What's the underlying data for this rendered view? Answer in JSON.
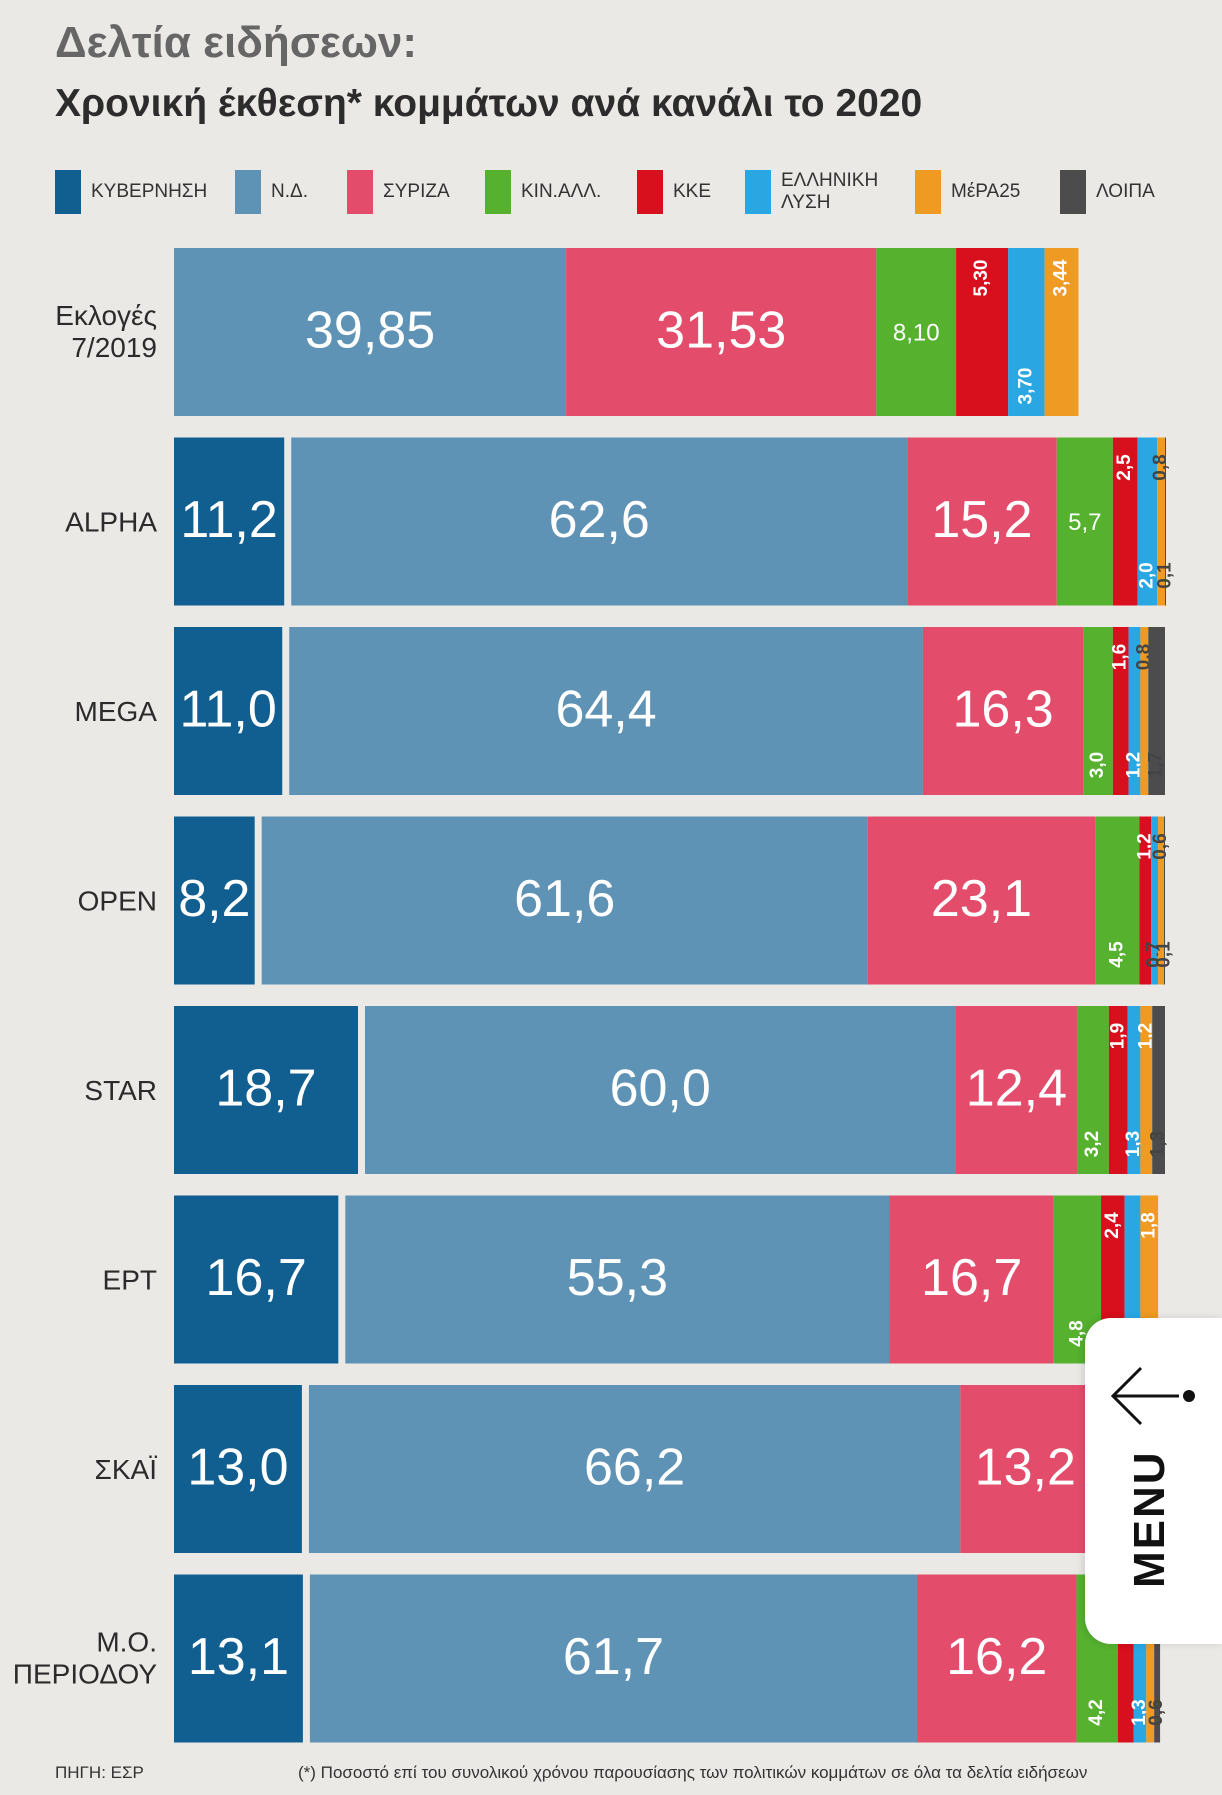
{
  "header": {
    "title": "Δελτία ειδήσεων:",
    "subtitle": "Χρονική έκθεση* κομμάτων ανά κανάλι το 2020"
  },
  "legend": [
    {
      "label": "ΚΥΒΕΡΝΗΣΗ",
      "color": "#115f91"
    },
    {
      "label": "Ν.Δ.",
      "color": "#5f93b5"
    },
    {
      "label": "ΣΥΡΙΖΑ",
      "color": "#e34d6b"
    },
    {
      "label": "ΚΙΝ.ΑΛΛ.",
      "color": "#56b12f"
    },
    {
      "label": "ΚΚΕ",
      "color": "#d80f1c"
    },
    {
      "label": "ΕΛΛΗΝΙΚΗ ΛΥΣΗ",
      "color": "#2aa7e3"
    },
    {
      "label": "ΜέΡΑ25",
      "color": "#ee9a23"
    },
    {
      "label": "ΛΟΙΠΑ",
      "color": "#4c4c4c"
    }
  ],
  "chart_data": {
    "type": "bar",
    "orientation": "horizontal",
    "stacked": true,
    "unit": "%",
    "categories": [
      "Εκλογές 7/2019",
      "ALPHA",
      "MEGA",
      "OPEN",
      "STAR",
      "ΕΡΤ",
      "ΣΚΑΪ",
      "Μ.Ο. ΠΕΡΙΟΔΟΥ"
    ],
    "series": [
      {
        "name": "ΚΥΒΕΡΝΗΣΗ",
        "values": [
          null,
          11.2,
          11.0,
          8.2,
          18.7,
          16.7,
          13.0,
          13.1
        ],
        "labels": [
          "",
          "11,2",
          "11,0",
          "8,2",
          "18,7",
          "16,7",
          "13,0",
          "13,1"
        ]
      },
      {
        "name": "Ν.Δ.",
        "values": [
          39.85,
          62.6,
          64.4,
          61.6,
          60.0,
          55.3,
          66.2,
          61.7
        ],
        "labels": [
          "39,85",
          "62,6",
          "64,4",
          "61,6",
          "60,0",
          "55,3",
          "66,2",
          "61,7"
        ]
      },
      {
        "name": "ΣΥΡΙΖΑ",
        "values": [
          31.53,
          15.2,
          16.3,
          23.1,
          12.4,
          16.7,
          13.2,
          16.2
        ],
        "labels": [
          "31,53",
          "15,2",
          "16,3",
          "23,1",
          "12,4",
          "16,7",
          "13,2",
          "16,2"
        ]
      },
      {
        "name": "ΚΙΝ.ΑΛΛ.",
        "values": [
          8.1,
          5.7,
          3.0,
          4.5,
          3.2,
          4.8,
          2.4,
          4.2
        ],
        "labels": [
          "8,10",
          "5,7",
          "3,0",
          "4,5",
          "3,2",
          "4,8",
          "",
          "4,2"
        ]
      },
      {
        "name": "ΚΚΕ",
        "values": [
          5.3,
          2.5,
          1.6,
          1.2,
          1.9,
          2.4,
          1.5,
          1.6
        ],
        "labels": [
          "5,30",
          "2,5",
          "1,6",
          "1,2",
          "1,9",
          "2,4",
          "",
          ""
        ]
      },
      {
        "name": "ΕΛΛΗΝΙΚΗ ΛΥΣΗ",
        "values": [
          3.7,
          2.0,
          1.2,
          0.7,
          1.3,
          1.6,
          1.2,
          1.3
        ],
        "labels": [
          "3,70",
          "2,0",
          "1,2",
          "0,7",
          "1,3",
          "",
          "",
          "1,3"
        ]
      },
      {
        "name": "ΜέΡΑ25",
        "values": [
          3.44,
          0.8,
          0.8,
          0.6,
          1.2,
          1.8,
          0.8,
          0.8
        ],
        "labels": [
          "3,44",
          "0,8",
          "0,8",
          "0,6",
          "1,2",
          "1,8",
          "",
          ""
        ]
      },
      {
        "name": "ΛΟΙΠΑ",
        "values": [
          null,
          0.1,
          1.7,
          0.1,
          1.3,
          null,
          null,
          0.6
        ],
        "labels": [
          "",
          "0,1",
          "1,7",
          "0,1",
          "1,3",
          "",
          "",
          "0,6"
        ]
      }
    ]
  },
  "footer": {
    "source": "ΠΗΓΗ: ΕΣΡ",
    "note": "(*) Ποσοστό επί του συνολικού χρόνου παρουσίασης των πολιτικών κομμάτων σε όλα τα δελτία ειδήσεων"
  },
  "menu": {
    "label": "MENU",
    "icon": "arrow-left-icon"
  }
}
